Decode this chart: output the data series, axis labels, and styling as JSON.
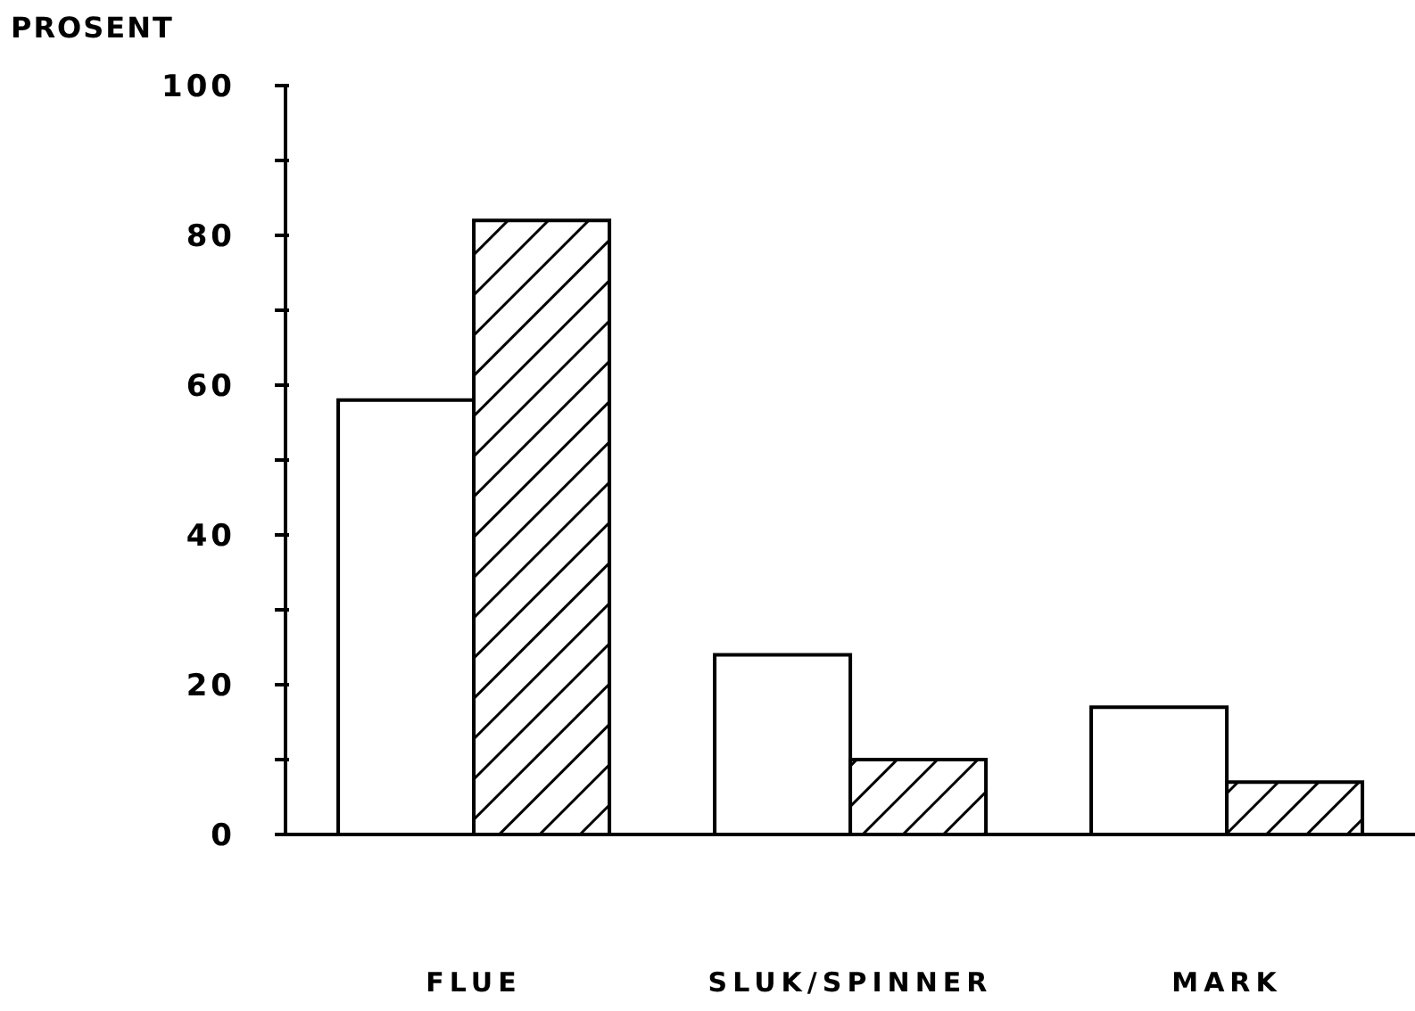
{
  "chart_data": {
    "type": "bar",
    "ylabel": "PROSENT",
    "categories": [
      "FLUE",
      "SLUK/SPINNER",
      "MARK"
    ],
    "series": [
      {
        "color": "#ffffff",
        "values": [
          58,
          24,
          17
        ]
      },
      {
        "color": "#000000",
        "values": [
          82,
          10,
          7
        ]
      }
    ],
    "ylim": [
      0,
      100
    ],
    "yticks": [
      0,
      {
        "value": 10,
        "label": null
      },
      20,
      {
        "value": 30,
        "label": null
      },
      40,
      {
        "value": 50,
        "label": null
      },
      60,
      {
        "value": 70,
        "label": null
      },
      80,
      {
        "value": 90,
        "label": null
      },
      100
    ],
    "grid": false,
    "legend": false
  }
}
